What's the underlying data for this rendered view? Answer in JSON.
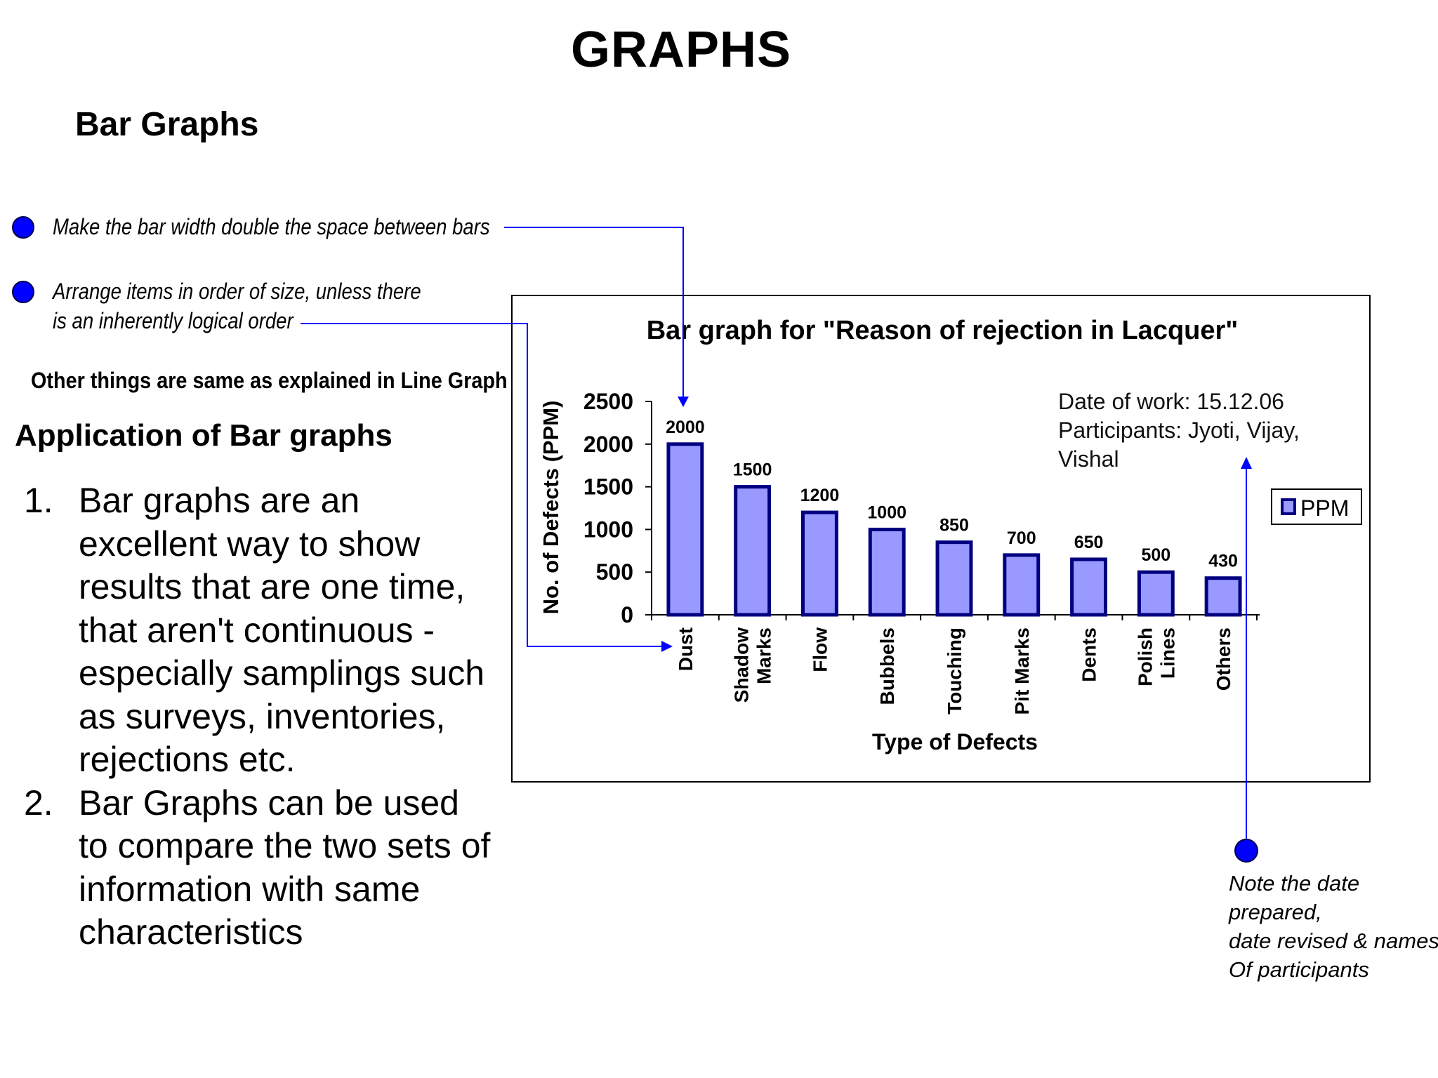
{
  "page": {
    "title": "GRAPHS",
    "section_title": "Bar Graphs",
    "tips": [
      "Make the bar width double the space between bars",
      "Arrange items in order of size, unless there is an inherently logical order"
    ],
    "tip2_lines": [
      "Arrange items in order of size, unless there",
      "is an inherently logical order"
    ],
    "other_note": "Other things are same as explained in Line Graph",
    "application_title": "Application of Bar graphs",
    "applications": [
      {
        "num": "1.",
        "lines": [
          "Bar graphs are an",
          "excellent way to show",
          "results that are one time,",
          "that aren't continuous -",
          "especially samplings such",
          "as surveys, inventories,",
          "rejections etc."
        ]
      },
      {
        "num": "2.",
        "lines": [
          "Bar Graphs can be used",
          "to compare the two sets of",
          "information with same",
          "characteristics"
        ]
      }
    ],
    "note_lines": [
      "Note the date prepared,",
      "date revised & names",
      "Of participants"
    ],
    "colors": {
      "accent": "#0000ff",
      "bar_fill": "#9999ff",
      "bar_stroke": "#000080"
    }
  },
  "chart_data": {
    "type": "bar",
    "title": "Bar graph for \"Reason of rejection in Lacquer\"",
    "xlabel": "Type of Defects",
    "ylabel": "No. of Defects (PPM)",
    "ylim": [
      0,
      2500
    ],
    "yticks": [
      0,
      500,
      1000,
      1500,
      2000,
      2500
    ],
    "categories": [
      "Dust",
      "Shadow Marks",
      "Flow",
      "Bubbels",
      "Touching",
      "Pit Marks",
      "Dents",
      "Polish Lines",
      "Others"
    ],
    "category_lines": [
      [
        "Dust"
      ],
      [
        "Shadow",
        "Marks"
      ],
      [
        "Flow"
      ],
      [
        "Bubbels"
      ],
      [
        "Touching"
      ],
      [
        "Pit Marks"
      ],
      [
        "Dents"
      ],
      [
        "Polish",
        "Lines"
      ],
      [
        "Others"
      ]
    ],
    "series": [
      {
        "name": "PPM",
        "values": [
          2000,
          1500,
          1200,
          1000,
          850,
          700,
          650,
          500,
          430
        ]
      }
    ],
    "legend": "right",
    "grid": false,
    "annotation_lines": [
      "Date of work: 15.12.06",
      "Participants: Jyoti, Vijay,",
      "Vishal"
    ]
  }
}
